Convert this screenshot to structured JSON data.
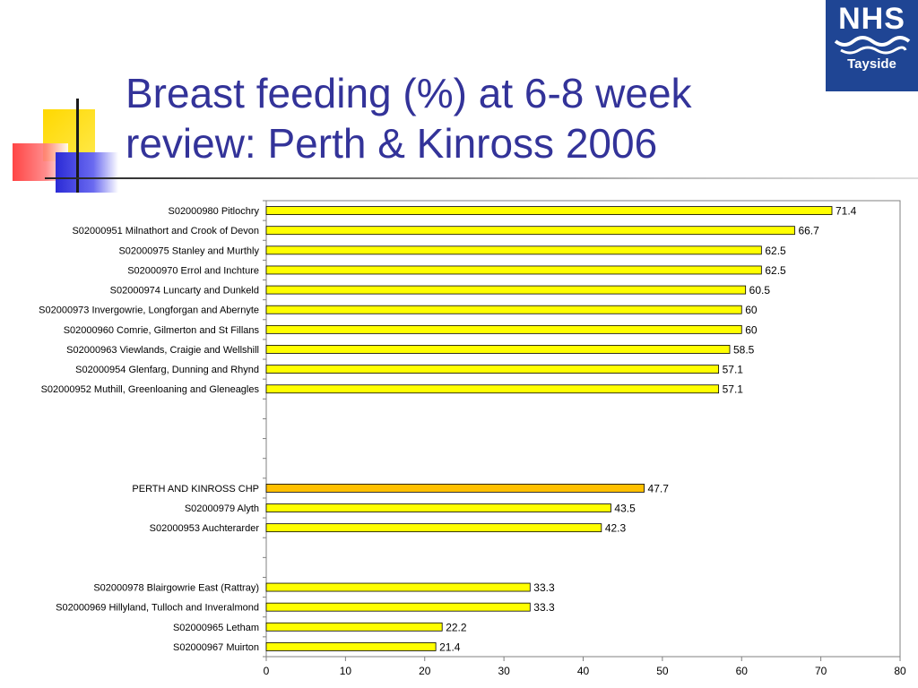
{
  "slide": {
    "title_line1": "Breast feeding (%) at 6-8 week",
    "title_line2": "review: Perth & Kinross 2006"
  },
  "logo": {
    "text": "NHS",
    "subtext": "Tayside",
    "color": "#1f4594"
  },
  "colors": {
    "bar": "#ffff00",
    "highlight_bar": "#ffc000",
    "title": "#333399"
  },
  "chart_data": {
    "type": "bar",
    "orientation": "horizontal",
    "xlim": [
      0,
      80
    ],
    "xticks": [
      0,
      10,
      20,
      30,
      40,
      50,
      60,
      70,
      80
    ],
    "grid": false,
    "categories": [
      "S02000980   Pitlochry",
      "S02000951   Milnathort and Crook of Devon",
      "S02000975   Stanley and Murthly",
      "S02000970   Errol and Inchture",
      "S02000974   Luncarty and Dunkeld",
      "S02000973   Invergowrie, Longforgan and Abernyte",
      "S02000960   Comrie, Gilmerton and St Fillans",
      "S02000963   Viewlands, Craigie and Wellshill",
      "S02000954   Glenfarg, Dunning and Rhynd",
      "S02000952   Muthill, Greenloaning and Gleneagles",
      "",
      "",
      "",
      "",
      "PERTH AND KINROSS CHP",
      "S02000979   Alyth",
      "S02000953   Auchterarder",
      "",
      "",
      "S02000978   Blairgowrie East (Rattray)",
      "S02000969   Hillyland, Tulloch and Inveralmond",
      "S02000965   Letham",
      "S02000967   Muirton"
    ],
    "values": [
      71.4,
      66.7,
      62.5,
      62.5,
      60.5,
      60,
      60,
      58.5,
      57.1,
      57.1,
      null,
      null,
      null,
      null,
      47.7,
      43.5,
      42.3,
      null,
      null,
      33.3,
      33.3,
      22.2,
      21.4
    ],
    "value_labels": [
      "71.4",
      "66.7",
      "62.5",
      "62.5",
      "60.5",
      "60",
      "60",
      "58.5",
      "57.1",
      "57.1",
      "",
      "",
      "",
      "",
      "47.7",
      "43.5",
      "42.3",
      "",
      "",
      "33.3",
      "33.3",
      "22.2",
      "21.4"
    ],
    "highlight": [
      "PERTH AND KINROSS CHP"
    ]
  }
}
